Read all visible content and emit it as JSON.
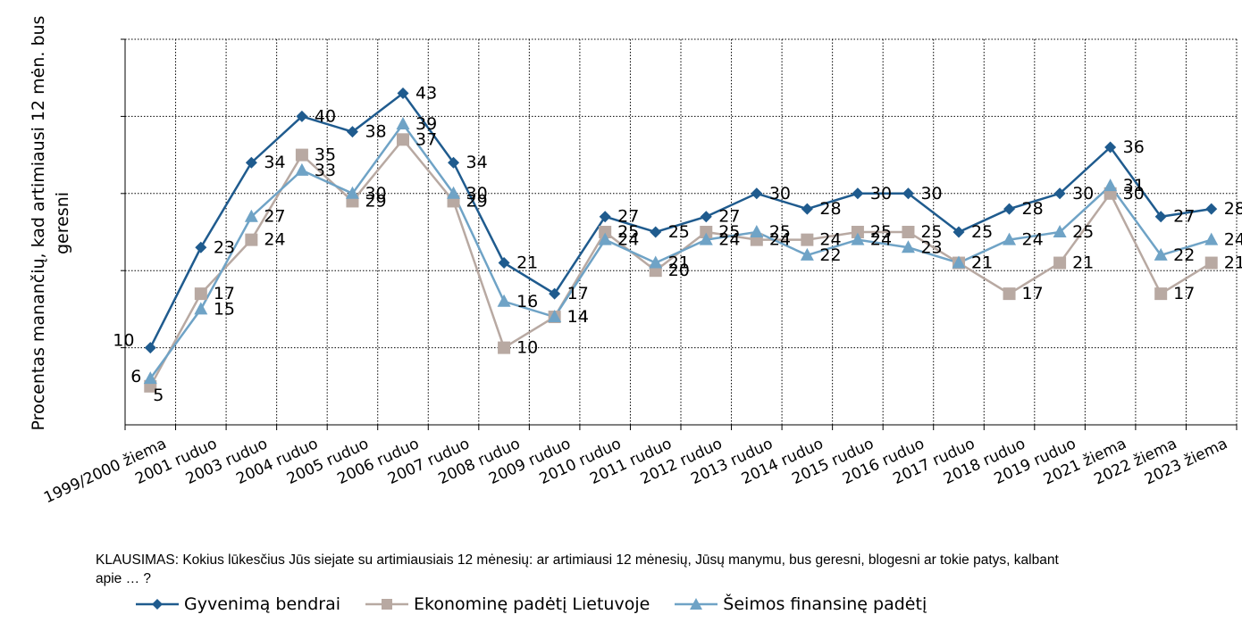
{
  "chart_data": {
    "type": "line",
    "title": "",
    "ylabel": "Procentas manančių, kad artimiausi 12 mėn. bus geresni",
    "xlabel": "",
    "categories": [
      "1999/2000 žiema",
      "2001 ruduo",
      "2003 ruduo",
      "2004 ruduo",
      "2005 ruduo",
      "2006 ruduo",
      "2007 ruduo",
      "2008 ruduo",
      "2009 ruduo",
      "2010 ruduo",
      "2011 ruduo",
      "2012 ruduo",
      "2013 ruduo",
      "2014 ruduo",
      "2015 ruduo",
      "2016 ruduo",
      "2017 ruduo",
      "2018 ruduo",
      "2019 ruduo",
      "2021 žiema",
      "2022 žiema",
      "2023 žiema"
    ],
    "ylim": [
      0,
      50
    ],
    "grid": true,
    "legend_position": "bottom",
    "series": [
      {
        "name": "Gyvenimą bendrai",
        "color": "#1f5b8e",
        "marker": "diamond",
        "values": [
          10,
          23,
          34,
          40,
          38,
          43,
          34,
          21,
          17,
          27,
          25,
          27,
          30,
          28,
          30,
          30,
          25,
          28,
          30,
          36,
          27,
          28
        ]
      },
      {
        "name": "Ekonominę padėtį Lietuvoje",
        "color": "#b8a9a2",
        "marker": "square",
        "values": [
          5,
          17,
          24,
          35,
          29,
          37,
          29,
          10,
          14,
          25,
          20,
          25,
          24,
          24,
          25,
          25,
          21,
          17,
          21,
          30,
          17,
          21
        ]
      },
      {
        "name": "Šeimos finansinę padėtį",
        "color": "#6fa3c6",
        "marker": "triangle",
        "values": [
          6,
          15,
          27,
          33,
          30,
          39,
          30,
          16,
          14,
          24,
          21,
          24,
          25,
          22,
          24,
          23,
          21,
          24,
          25,
          31,
          22,
          24
        ]
      }
    ]
  },
  "question": "KLAUSIMAS: Kokius lūkesčius Jūs siejate su artimiausiais 12 mėnesių: ar artimiausi 12 mėnesių, Jūsų manymu, bus geresni, blogesni ar tokie patys, kalbant apie … ?"
}
